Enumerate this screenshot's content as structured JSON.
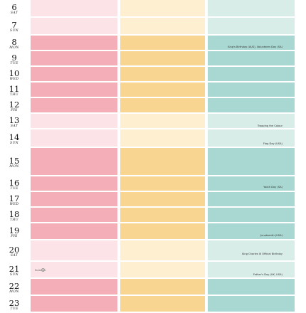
{
  "colors": {
    "pink": "#f3aeb8",
    "pink_light": "#fbe3e7",
    "yellow": "#f8d591",
    "yellow_light": "#fdefd0",
    "teal": "#a8d8d1",
    "teal_light": "#d8ece8"
  },
  "days": [
    {
      "num": "6",
      "dow": "SAT",
      "weekend": true,
      "events": []
    },
    {
      "num": "7",
      "dow": "SUN",
      "weekend": true,
      "events": []
    },
    {
      "num": "8",
      "dow": "MON",
      "weekend": false,
      "events": [
        "King's Birthday (AUS), Volunteers Day (SA)"
      ]
    },
    {
      "num": "9",
      "dow": "TUE",
      "weekend": false,
      "events": []
    },
    {
      "num": "10",
      "dow": "WED",
      "weekend": false,
      "events": []
    },
    {
      "num": "11",
      "dow": "THU",
      "weekend": false,
      "events": []
    },
    {
      "num": "12",
      "dow": "FRI",
      "weekend": false,
      "events": []
    },
    {
      "num": "13",
      "dow": "SAT",
      "weekend": true,
      "events": [
        "Trooping the Colour"
      ]
    },
    {
      "num": "14",
      "dow": "SUN",
      "weekend": true,
      "events": [
        "Flag Day (USA)"
      ]
    },
    {
      "num": "15",
      "dow": "MON",
      "weekend": false,
      "events": []
    },
    {
      "num": "16",
      "dow": "TUE",
      "weekend": false,
      "events": [
        "Youth Day (SA)"
      ]
    },
    {
      "num": "17",
      "dow": "WED",
      "weekend": false,
      "events": []
    },
    {
      "num": "18",
      "dow": "THU",
      "weekend": false,
      "events": []
    },
    {
      "num": "19",
      "dow": "FRI",
      "weekend": false,
      "events": [
        "Juneteenth (USA)"
      ]
    },
    {
      "num": "20",
      "dow": "SAT",
      "weekend": true,
      "events": [
        "King Charles III Official Birthday"
      ]
    },
    {
      "num": "21",
      "dow": "SUN",
      "weekend": true,
      "events": [
        "Father's Day (UK, USA)"
      ],
      "note": "Summer"
    },
    {
      "num": "22",
      "dow": "MON",
      "weekend": false,
      "events": []
    },
    {
      "num": "23",
      "dow": "TUE",
      "weekend": false,
      "events": []
    }
  ]
}
